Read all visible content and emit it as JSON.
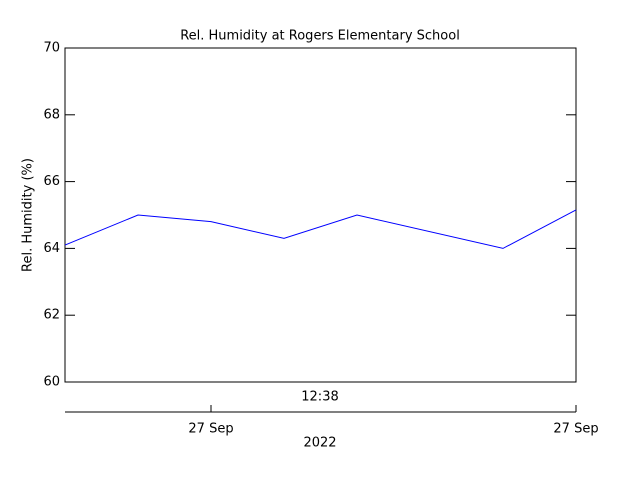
{
  "chart_data": {
    "type": "line",
    "title": "Rel. Humidity at Rogers Elementary School",
    "ylabel": "Rel. Humidity (%)",
    "x_sublabel": "12:38",
    "xlabel": "2022",
    "x": [
      0,
      1,
      2,
      3,
      4,
      6,
      7
    ],
    "series": [
      {
        "name": "Rel. Humidity",
        "color": "#0000ff",
        "values": [
          64.1,
          65.0,
          64.8,
          64.3,
          65.0,
          64.0,
          65.15
        ]
      }
    ],
    "xlim": [
      0,
      7
    ],
    "xticks": [
      {
        "value": 2,
        "label": "27 Sep"
      },
      {
        "value": 7,
        "label": "27 Sep"
      }
    ],
    "ylim": [
      60,
      70
    ],
    "yticks": [
      60,
      62,
      64,
      66,
      68,
      70
    ]
  }
}
